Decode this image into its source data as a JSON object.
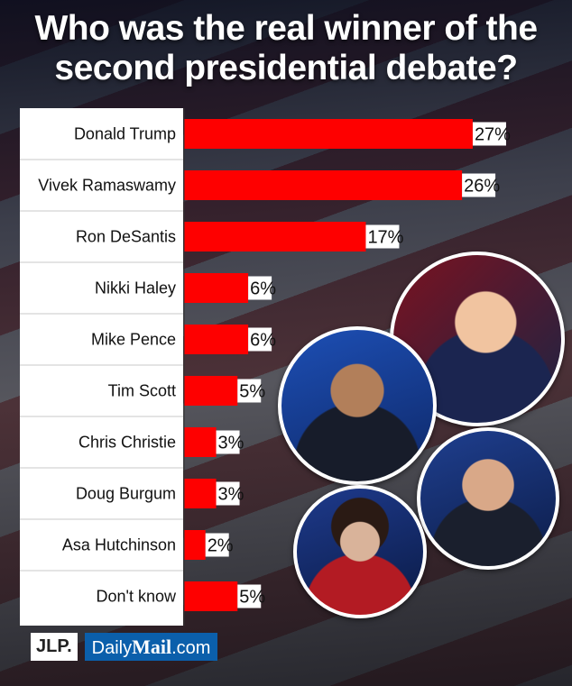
{
  "title_line1": "Who was the real winner of the",
  "title_line2": "second presidential debate?",
  "chart_data": {
    "type": "bar",
    "orientation": "horizontal",
    "categories": [
      "Donald Trump",
      "Vivek Ramaswamy",
      "Ron DeSantis",
      "Nikki Haley",
      "Mike Pence",
      "Tim Scott",
      "Chris Christie",
      "Doug Burgum",
      "Asa Hutchinson",
      "Don't know"
    ],
    "values": [
      27,
      26,
      17,
      6,
      6,
      5,
      3,
      3,
      2,
      5
    ],
    "value_labels": [
      "27%",
      "26%",
      "17%",
      "6%",
      "6%",
      "5%",
      "3%",
      "3%",
      "2%",
      "5%"
    ],
    "unit": "%",
    "bar_color": "#fe0000",
    "label_panel_color": "#ffffff",
    "grid": false,
    "legend": "none"
  },
  "logos": {
    "jlp": "JLP.",
    "dm_prefix": "Daily",
    "dm_bold": "Mail",
    "dm_suffix": ".com"
  }
}
